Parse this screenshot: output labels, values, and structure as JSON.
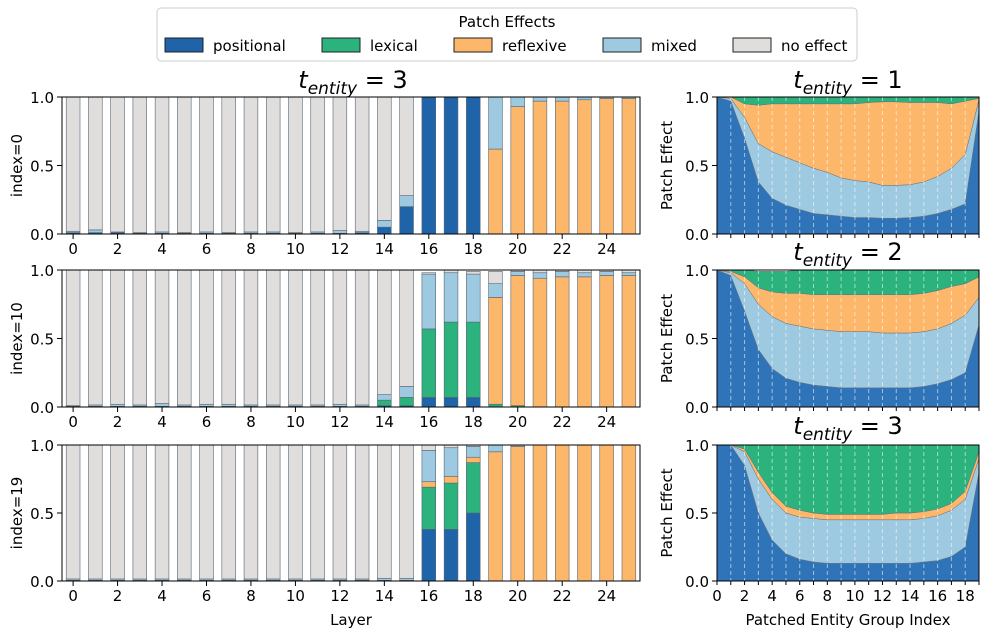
{
  "legend": {
    "title": "Patch Effects",
    "items": [
      {
        "label": "positional",
        "color": "#1f63a8"
      },
      {
        "label": "lexical",
        "color": "#2bb27d"
      },
      {
        "label": "reflexive",
        "color": "#fdb76b"
      },
      {
        "label": "mixed",
        "color": "#9ecae1"
      },
      {
        "label": "no effect",
        "color": "#e0dddd"
      }
    ]
  },
  "colors": {
    "positional": "#1f63a8",
    "lexical": "#2bb27d",
    "reflexive": "#fdb76b",
    "mixed": "#9ecae1",
    "no_effect": "#e0dddd",
    "area_positional": "#2f74b8"
  },
  "left_title": {
    "main": "t",
    "sub": "entity",
    "rest": " = 3"
  },
  "right_titles": [
    {
      "main": "t",
      "sub": "entity",
      "rest": " = 1"
    },
    {
      "main": "t",
      "sub": "entity",
      "rest": " = 2"
    },
    {
      "main": "t",
      "sub": "entity",
      "rest": " = 3"
    }
  ],
  "chart_data": [
    {
      "type": "bar",
      "stacked": true,
      "title": "t_entity = 3",
      "ylabel": "index=0",
      "xlabel": "",
      "ylim": [
        0,
        1
      ],
      "yticks": [
        "0.0",
        "0.5",
        "1.0"
      ],
      "xticks": [
        "0",
        "2",
        "4",
        "6",
        "8",
        "10",
        "12",
        "14",
        "16",
        "18",
        "20",
        "22",
        "24"
      ],
      "categories": [
        0,
        1,
        2,
        3,
        4,
        5,
        6,
        7,
        8,
        9,
        10,
        11,
        12,
        13,
        14,
        15,
        16,
        17,
        18,
        19,
        20,
        21,
        22,
        23,
        24,
        25
      ],
      "series": [
        {
          "name": "positional",
          "values": [
            0.01,
            0.01,
            0.01,
            0.005,
            0.005,
            0.005,
            0.005,
            0.005,
            0.005,
            0.005,
            0.005,
            0.005,
            0.005,
            0.01,
            0.05,
            0.2,
            1,
            1,
            1,
            0,
            0,
            0,
            0,
            0,
            0,
            0
          ]
        },
        {
          "name": "lexical",
          "values": [
            0,
            0,
            0,
            0,
            0,
            0,
            0,
            0,
            0,
            0,
            0,
            0,
            0,
            0,
            0,
            0,
            0,
            0,
            0,
            0,
            0,
            0,
            0,
            0,
            0,
            0
          ]
        },
        {
          "name": "reflexive",
          "values": [
            0,
            0,
            0,
            0,
            0,
            0,
            0,
            0,
            0,
            0,
            0,
            0,
            0,
            0,
            0,
            0,
            0,
            0,
            0,
            0.62,
            0.93,
            0.97,
            0.97,
            0.98,
            0.99,
            0.99
          ]
        },
        {
          "name": "mixed",
          "values": [
            0.01,
            0.02,
            0.005,
            0.005,
            0.01,
            0.005,
            0.01,
            0.005,
            0.01,
            0.01,
            0.005,
            0.01,
            0.02,
            0.01,
            0.05,
            0.08,
            0,
            0,
            0,
            0.38,
            0.07,
            0.03,
            0.03,
            0.02,
            0.01,
            0.01
          ]
        },
        {
          "name": "no effect",
          "values": [
            0.98,
            0.97,
            0.985,
            0.99,
            0.985,
            0.99,
            0.985,
            0.99,
            0.985,
            0.985,
            0.99,
            0.985,
            0.975,
            0.98,
            0.9,
            0.72,
            0,
            0,
            0,
            0,
            0,
            0,
            0,
            0,
            0,
            0
          ]
        }
      ]
    },
    {
      "type": "bar",
      "stacked": true,
      "title": "",
      "ylabel": "index=10",
      "xlabel": "",
      "ylim": [
        0,
        1
      ],
      "yticks": [
        "0.0",
        "0.5",
        "1.0"
      ],
      "xticks": [
        "0",
        "2",
        "4",
        "6",
        "8",
        "10",
        "12",
        "14",
        "16",
        "18",
        "20",
        "22",
        "24"
      ],
      "categories": [
        0,
        1,
        2,
        3,
        4,
        5,
        6,
        7,
        8,
        9,
        10,
        11,
        12,
        13,
        14,
        15,
        16,
        17,
        18,
        19,
        20,
        21,
        22,
        23,
        24,
        25
      ],
      "series": [
        {
          "name": "positional",
          "values": [
            0.005,
            0.005,
            0.005,
            0.005,
            0.005,
            0.005,
            0.005,
            0.005,
            0.005,
            0.005,
            0.005,
            0.005,
            0.005,
            0.005,
            0.01,
            0.01,
            0.07,
            0.07,
            0.07,
            0,
            0,
            0,
            0,
            0,
            0,
            0
          ]
        },
        {
          "name": "lexical",
          "values": [
            0,
            0,
            0,
            0,
            0,
            0,
            0,
            0,
            0,
            0,
            0,
            0,
            0,
            0,
            0.04,
            0.06,
            0.5,
            0.55,
            0.55,
            0.02,
            0.01,
            0,
            0,
            0,
            0,
            0
          ]
        },
        {
          "name": "reflexive",
          "values": [
            0,
            0,
            0,
            0,
            0,
            0,
            0,
            0,
            0,
            0,
            0,
            0,
            0,
            0,
            0,
            0,
            0,
            0,
            0,
            0.78,
            0.95,
            0.94,
            0.95,
            0.95,
            0.96,
            0.96
          ]
        },
        {
          "name": "mixed",
          "values": [
            0.005,
            0.01,
            0.015,
            0.01,
            0.02,
            0.01,
            0.015,
            0.015,
            0.01,
            0.01,
            0.01,
            0.01,
            0.015,
            0.01,
            0.04,
            0.08,
            0.4,
            0.36,
            0.35,
            0.1,
            0.03,
            0.04,
            0.04,
            0.03,
            0.03,
            0.02
          ]
        },
        {
          "name": "no effect",
          "values": [
            0.99,
            0.985,
            0.98,
            0.985,
            0.975,
            0.985,
            0.98,
            0.98,
            0.985,
            0.985,
            0.985,
            0.985,
            0.98,
            0.985,
            0.91,
            0.85,
            0.01,
            0.02,
            0.02,
            0.09,
            0.01,
            0.02,
            0.01,
            0.02,
            0.01,
            0.02
          ]
        }
      ]
    },
    {
      "type": "bar",
      "stacked": true,
      "title": "",
      "ylabel": "index=19",
      "xlabel": "Layer",
      "ylim": [
        0,
        1
      ],
      "yticks": [
        "0.0",
        "0.5",
        "1.0"
      ],
      "xticks": [
        "0",
        "2",
        "4",
        "6",
        "8",
        "10",
        "12",
        "14",
        "16",
        "18",
        "20",
        "22",
        "24"
      ],
      "categories": [
        0,
        1,
        2,
        3,
        4,
        5,
        6,
        7,
        8,
        9,
        10,
        11,
        12,
        13,
        14,
        15,
        16,
        17,
        18,
        19,
        20,
        21,
        22,
        23,
        24,
        25
      ],
      "series": [
        {
          "name": "positional",
          "values": [
            0.005,
            0.005,
            0.005,
            0.005,
            0.005,
            0.005,
            0.005,
            0.005,
            0.005,
            0.005,
            0.005,
            0.005,
            0.005,
            0.005,
            0.005,
            0.005,
            0.38,
            0.38,
            0.5,
            0,
            0,
            0,
            0,
            0,
            0,
            0
          ]
        },
        {
          "name": "lexical",
          "values": [
            0,
            0,
            0,
            0,
            0,
            0,
            0,
            0,
            0,
            0,
            0,
            0,
            0,
            0,
            0,
            0,
            0.31,
            0.34,
            0.37,
            0,
            0,
            0,
            0,
            0,
            0,
            0
          ]
        },
        {
          "name": "reflexive",
          "values": [
            0,
            0,
            0,
            0,
            0,
            0,
            0,
            0,
            0,
            0,
            0,
            0,
            0,
            0,
            0,
            0,
            0.04,
            0.05,
            0.04,
            0.95,
            0.99,
            1,
            1,
            1,
            1,
            1
          ]
        },
        {
          "name": "mixed",
          "values": [
            0.01,
            0.01,
            0.01,
            0.01,
            0.01,
            0.01,
            0.01,
            0.01,
            0.01,
            0.01,
            0.01,
            0.01,
            0.01,
            0.01,
            0.015,
            0.015,
            0.23,
            0.21,
            0.08,
            0.05,
            0.01,
            0,
            0,
            0,
            0,
            0
          ]
        },
        {
          "name": "no effect",
          "values": [
            0.985,
            0.985,
            0.985,
            0.985,
            0.985,
            0.985,
            0.985,
            0.985,
            0.985,
            0.985,
            0.985,
            0.985,
            0.985,
            0.985,
            0.98,
            0.98,
            0.04,
            0.02,
            0.01,
            0,
            0,
            0,
            0,
            0,
            0,
            0
          ]
        }
      ]
    },
    {
      "type": "area",
      "stacked": true,
      "title": "t_entity = 1",
      "ylabel": "Patch Effect",
      "xlabel": "",
      "ylim": [
        0,
        1
      ],
      "xlim": [
        0,
        19
      ],
      "yticks": [
        "0.0",
        "0.5",
        "1.0"
      ],
      "xticks": [
        "0",
        "2",
        "4",
        "6",
        "8",
        "10",
        "12",
        "14",
        "16",
        "18"
      ],
      "x": [
        0,
        1,
        2,
        3,
        4,
        5,
        6,
        7,
        8,
        9,
        10,
        11,
        12,
        13,
        14,
        15,
        16,
        17,
        18,
        19
      ],
      "series": [
        {
          "name": "positional",
          "values": [
            1.0,
            0.97,
            0.7,
            0.38,
            0.26,
            0.21,
            0.18,
            0.15,
            0.14,
            0.13,
            0.12,
            0.12,
            0.115,
            0.115,
            0.12,
            0.13,
            0.15,
            0.18,
            0.22,
            0.9
          ]
        },
        {
          "name": "mixed",
          "values": [
            0,
            0.02,
            0.15,
            0.28,
            0.34,
            0.35,
            0.34,
            0.33,
            0.31,
            0.28,
            0.27,
            0.26,
            0.24,
            0.24,
            0.24,
            0.25,
            0.27,
            0.3,
            0.36,
            0.08
          ]
        },
        {
          "name": "reflexive",
          "values": [
            0,
            0.01,
            0.1,
            0.28,
            0.35,
            0.39,
            0.43,
            0.47,
            0.5,
            0.54,
            0.56,
            0.58,
            0.61,
            0.61,
            0.6,
            0.58,
            0.54,
            0.47,
            0.39,
            0.01
          ]
        },
        {
          "name": "lexical",
          "values": [
            0,
            0,
            0.05,
            0.06,
            0.05,
            0.05,
            0.05,
            0.05,
            0.05,
            0.05,
            0.05,
            0.04,
            0.04,
            0.04,
            0.04,
            0.04,
            0.04,
            0.05,
            0.03,
            0.01
          ]
        }
      ]
    },
    {
      "type": "area",
      "stacked": true,
      "title": "t_entity = 2",
      "ylabel": "Patch Effect",
      "xlabel": "",
      "ylim": [
        0,
        1
      ],
      "xlim": [
        0,
        19
      ],
      "yticks": [
        "0.0",
        "0.5",
        "1.0"
      ],
      "xticks": [
        "0",
        "2",
        "4",
        "6",
        "8",
        "10",
        "12",
        "14",
        "16",
        "18"
      ],
      "x": [
        0,
        1,
        2,
        3,
        4,
        5,
        6,
        7,
        8,
        9,
        10,
        11,
        12,
        13,
        14,
        15,
        16,
        17,
        18,
        19
      ],
      "series": [
        {
          "name": "positional",
          "values": [
            1.0,
            0.96,
            0.7,
            0.42,
            0.28,
            0.21,
            0.18,
            0.16,
            0.15,
            0.14,
            0.14,
            0.14,
            0.14,
            0.14,
            0.14,
            0.15,
            0.17,
            0.2,
            0.25,
            0.6
          ]
        },
        {
          "name": "mixed",
          "values": [
            0,
            0.02,
            0.2,
            0.33,
            0.38,
            0.4,
            0.41,
            0.41,
            0.41,
            0.41,
            0.41,
            0.41,
            0.4,
            0.4,
            0.4,
            0.4,
            0.4,
            0.41,
            0.42,
            0.2
          ]
        },
        {
          "name": "reflexive",
          "values": [
            0,
            0.01,
            0.05,
            0.12,
            0.18,
            0.22,
            0.24,
            0.25,
            0.26,
            0.27,
            0.27,
            0.27,
            0.28,
            0.28,
            0.28,
            0.28,
            0.28,
            0.27,
            0.23,
            0.15
          ]
        },
        {
          "name": "lexical",
          "values": [
            0,
            0.01,
            0.05,
            0.12,
            0.15,
            0.16,
            0.17,
            0.18,
            0.18,
            0.18,
            0.18,
            0.18,
            0.18,
            0.18,
            0.18,
            0.17,
            0.15,
            0.12,
            0.1,
            0.05
          ]
        }
      ]
    },
    {
      "type": "area",
      "stacked": true,
      "title": "t_entity = 3",
      "ylabel": "Patch Effect",
      "xlabel": "Patched Entity Group Index",
      "ylim": [
        0,
        1
      ],
      "xlim": [
        0,
        19
      ],
      "yticks": [
        "0.0",
        "0.5",
        "1.0"
      ],
      "xticks": [
        "0",
        "2",
        "4",
        "6",
        "8",
        "10",
        "12",
        "14",
        "16",
        "18"
      ],
      "x": [
        0,
        1,
        2,
        3,
        4,
        5,
        6,
        7,
        8,
        9,
        10,
        11,
        12,
        13,
        14,
        15,
        16,
        17,
        18,
        19
      ],
      "series": [
        {
          "name": "positional",
          "values": [
            1.0,
            1.0,
            0.85,
            0.5,
            0.3,
            0.2,
            0.16,
            0.14,
            0.13,
            0.13,
            0.13,
            0.13,
            0.13,
            0.13,
            0.13,
            0.14,
            0.15,
            0.18,
            0.25,
            0.8
          ]
        },
        {
          "name": "mixed",
          "values": [
            0,
            0,
            0.1,
            0.25,
            0.3,
            0.3,
            0.31,
            0.32,
            0.32,
            0.32,
            0.32,
            0.32,
            0.32,
            0.32,
            0.32,
            0.32,
            0.33,
            0.34,
            0.35,
            0.1
          ]
        },
        {
          "name": "reflexive",
          "values": [
            0,
            0,
            0.02,
            0.05,
            0.05,
            0.05,
            0.05,
            0.04,
            0.04,
            0.04,
            0.04,
            0.04,
            0.04,
            0.05,
            0.05,
            0.05,
            0.05,
            0.05,
            0.06,
            0.05
          ]
        },
        {
          "name": "lexical",
          "values": [
            0,
            0,
            0.03,
            0.2,
            0.35,
            0.45,
            0.48,
            0.5,
            0.51,
            0.51,
            0.51,
            0.51,
            0.51,
            0.5,
            0.5,
            0.49,
            0.47,
            0.43,
            0.34,
            0.05
          ]
        }
      ]
    }
  ]
}
